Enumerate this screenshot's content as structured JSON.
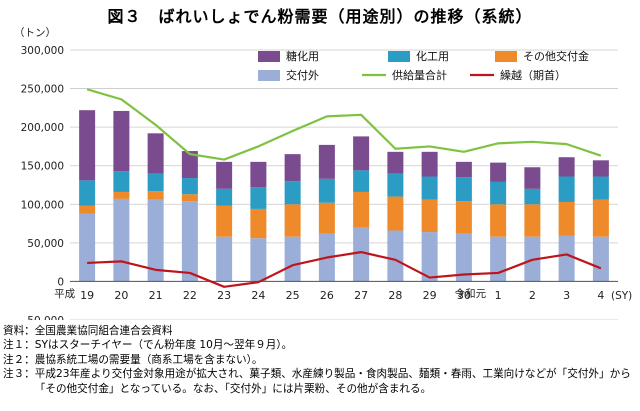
{
  "chart_data": {
    "type": "bar",
    "title": "図３　ばれいしょでん粉需要（用途別）の推移（系統）",
    "ylabel": "（トン）",
    "xlabel": "(SY)",
    "era_labels": [
      {
        "text": "平成",
        "at": "19"
      },
      {
        "text": "令和元",
        "at": "1"
      }
    ],
    "categories": [
      "19",
      "20",
      "21",
      "22",
      "23",
      "24",
      "25",
      "26",
      "27",
      "28",
      "29",
      "30",
      "1",
      "2",
      "3",
      "4"
    ],
    "ylim": [
      -50000,
      300000
    ],
    "yticks": [
      -50000,
      0,
      50000,
      100000,
      150000,
      200000,
      250000,
      300000
    ],
    "ytick_labels": [
      "-50,000",
      "0",
      "50,000",
      "100,000",
      "150,000",
      "200,000",
      "250,000",
      "300,000"
    ],
    "grid": true,
    "legend_placement": "top-center",
    "stacked_series": [
      {
        "name": "交付外",
        "color": "#9aaed8",
        "values": [
          88000,
          107000,
          106000,
          104000,
          58000,
          56000,
          58000,
          62000,
          70000,
          66000,
          64000,
          62000,
          58000,
          58000,
          59000,
          58000
        ]
      },
      {
        "name": "その他交付金",
        "color": "#ee8a2a",
        "values": [
          10000,
          9000,
          11000,
          9000,
          40000,
          38000,
          42000,
          40000,
          46000,
          44000,
          42000,
          42000,
          42000,
          42000,
          44000,
          48000
        ]
      },
      {
        "name": "化工用",
        "color": "#2b9cc4",
        "values": [
          33000,
          27000,
          23000,
          21000,
          22000,
          28000,
          30000,
          31000,
          28000,
          30000,
          30000,
          31000,
          29000,
          20000,
          33000,
          30000
        ]
      },
      {
        "name": "糖化用",
        "color": "#7a4b8f",
        "values": [
          91000,
          78000,
          52000,
          35000,
          35000,
          33000,
          35000,
          44000,
          44000,
          28000,
          32000,
          20000,
          25000,
          28000,
          25000,
          21000
        ]
      }
    ],
    "line_series": [
      {
        "name": "供給量合計",
        "color": "#7fc241",
        "values": [
          249000,
          236000,
          203000,
          165000,
          158000,
          175000,
          195000,
          214000,
          216000,
          172000,
          175000,
          168000,
          179000,
          181000,
          178000,
          163000
        ]
      },
      {
        "name": "繰越（期首）",
        "color": "#c0141c",
        "values": [
          24000,
          26000,
          15000,
          11000,
          -7000,
          -1000,
          21000,
          31000,
          38000,
          28000,
          5000,
          9000,
          11000,
          28000,
          35000,
          17000
        ]
      }
    ]
  },
  "notes": [
    {
      "label": "資料：",
      "text": "全国農業協同組合連合会資料"
    },
    {
      "label": "注１：",
      "text": "SYはスターチイヤー（でん粉年度 10月～翌年９月）。"
    },
    {
      "label": "注２：",
      "text": "農協系統工場の需要量（商系工場を含まない）。"
    },
    {
      "label": "注３：",
      "text": "平成23年産より交付金対象用途が拡大され、菓子類、水産練り製品・食肉製品、麺類・春雨、工業向けなどが「交付外」から「その他交付金」となっている。なお、「交付外」には片栗粉、その他が含まれる。"
    }
  ]
}
